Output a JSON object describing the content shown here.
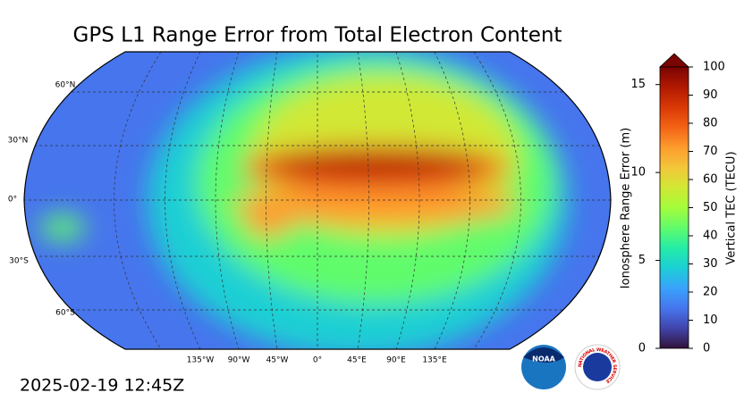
{
  "title": "GPS L1 Range Error from Total Electron Content",
  "timestamp": "2025-02-19 12:45Z",
  "map": {
    "lat_labels": [
      "60°N",
      "30°N",
      "0°",
      "30°S",
      "60°S"
    ],
    "lon_labels": [
      "135°W",
      "90°W",
      "45°W",
      "0°",
      "45°E",
      "90°E",
      "135°E"
    ]
  },
  "colorbar": {
    "left_label": "Ionosphere Range Error (m)",
    "right_label": "Vertical TEC (TECU)",
    "left_ticks": [
      0,
      5,
      10,
      15
    ],
    "left_lim": [
      0,
      16
    ],
    "right_ticks": [
      0,
      10,
      20,
      30,
      40,
      50,
      60,
      70,
      80,
      90,
      100
    ],
    "right_lim": [
      0,
      100
    ],
    "colors": [
      "#30123b",
      "#4145ab",
      "#4675ed",
      "#39a2fc",
      "#1bcfd4",
      "#24eca6",
      "#61fc6c",
      "#a4fc3b",
      "#d1e834",
      "#f3c63a",
      "#fe9b2d",
      "#f36315",
      "#d93806",
      "#b11901",
      "#7a0402"
    ]
  },
  "logos": {
    "noaa": "NOAA",
    "nws": "NATIONAL WEATHER SERVICE"
  }
}
